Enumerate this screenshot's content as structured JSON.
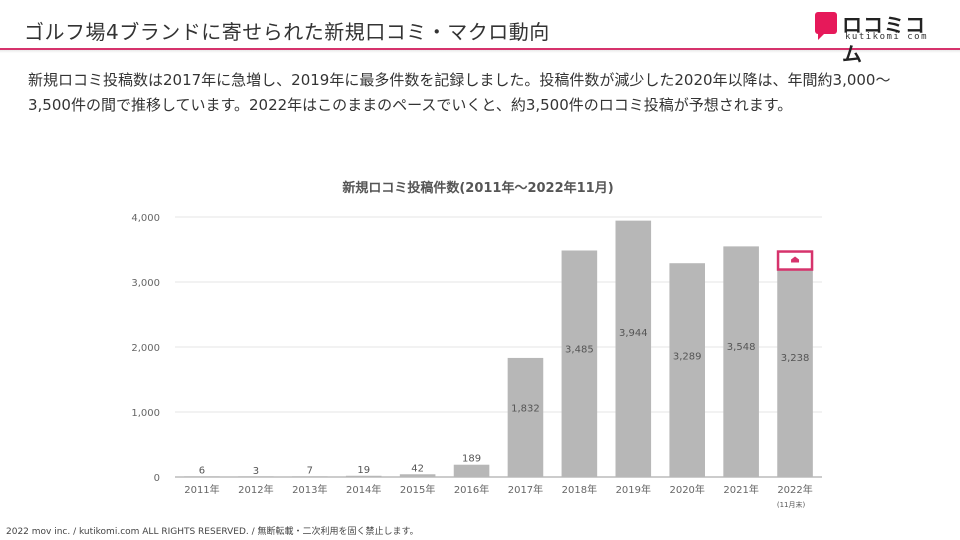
{
  "header": {
    "title": "ゴルフ場4ブランドに寄せられた新規口コミ・マクロ動向",
    "logo_text": "ロコミコム",
    "logo_sub": "kutikomi com"
  },
  "description": "新規ロコミ投稿数は2017年に急増し、2019年に最多件数を記録しました。投稿件数が減少した2020年以降は、年間約3,000〜3,500件の間で推移しています。2022年はこのままのペースでいくと、約3,500件のロコミ投稿が予想されます。",
  "footer": "2022 mov inc. / kutikomi.com ALL RIGHTS RESERVED. / 無断転載・二次利用を固く禁止します。",
  "colors": {
    "accent": "#d6336c",
    "bar": "#b7b7b7",
    "grid": "#e6e6e6"
  },
  "chart_data": {
    "type": "bar",
    "title": "新規ロコミ投稿件数(2011年〜2022年11月)",
    "categories": [
      "2011年",
      "2012年",
      "2013年",
      "2014年",
      "2015年",
      "2016年",
      "2017年",
      "2018年",
      "2019年",
      "2020年",
      "2021年",
      "2022年"
    ],
    "values": [
      6,
      3,
      7,
      19,
      42,
      189,
      1832,
      3485,
      3944,
      3289,
      3548,
      3238
    ],
    "value_labels": [
      "6",
      "3",
      "7",
      "19",
      "42",
      "189",
      "1,832",
      "3,485",
      "3,944",
      "3,289",
      "3,548",
      "3,238"
    ],
    "yticks": [
      0,
      1000,
      2000,
      3000,
      4000
    ],
    "ytick_labels": [
      "0",
      "1,000",
      "2,000",
      "3,000",
      "4,000"
    ],
    "ylim": [
      0,
      4000
    ],
    "note": "(11月末)",
    "highlight_index": 11,
    "grid": true
  }
}
